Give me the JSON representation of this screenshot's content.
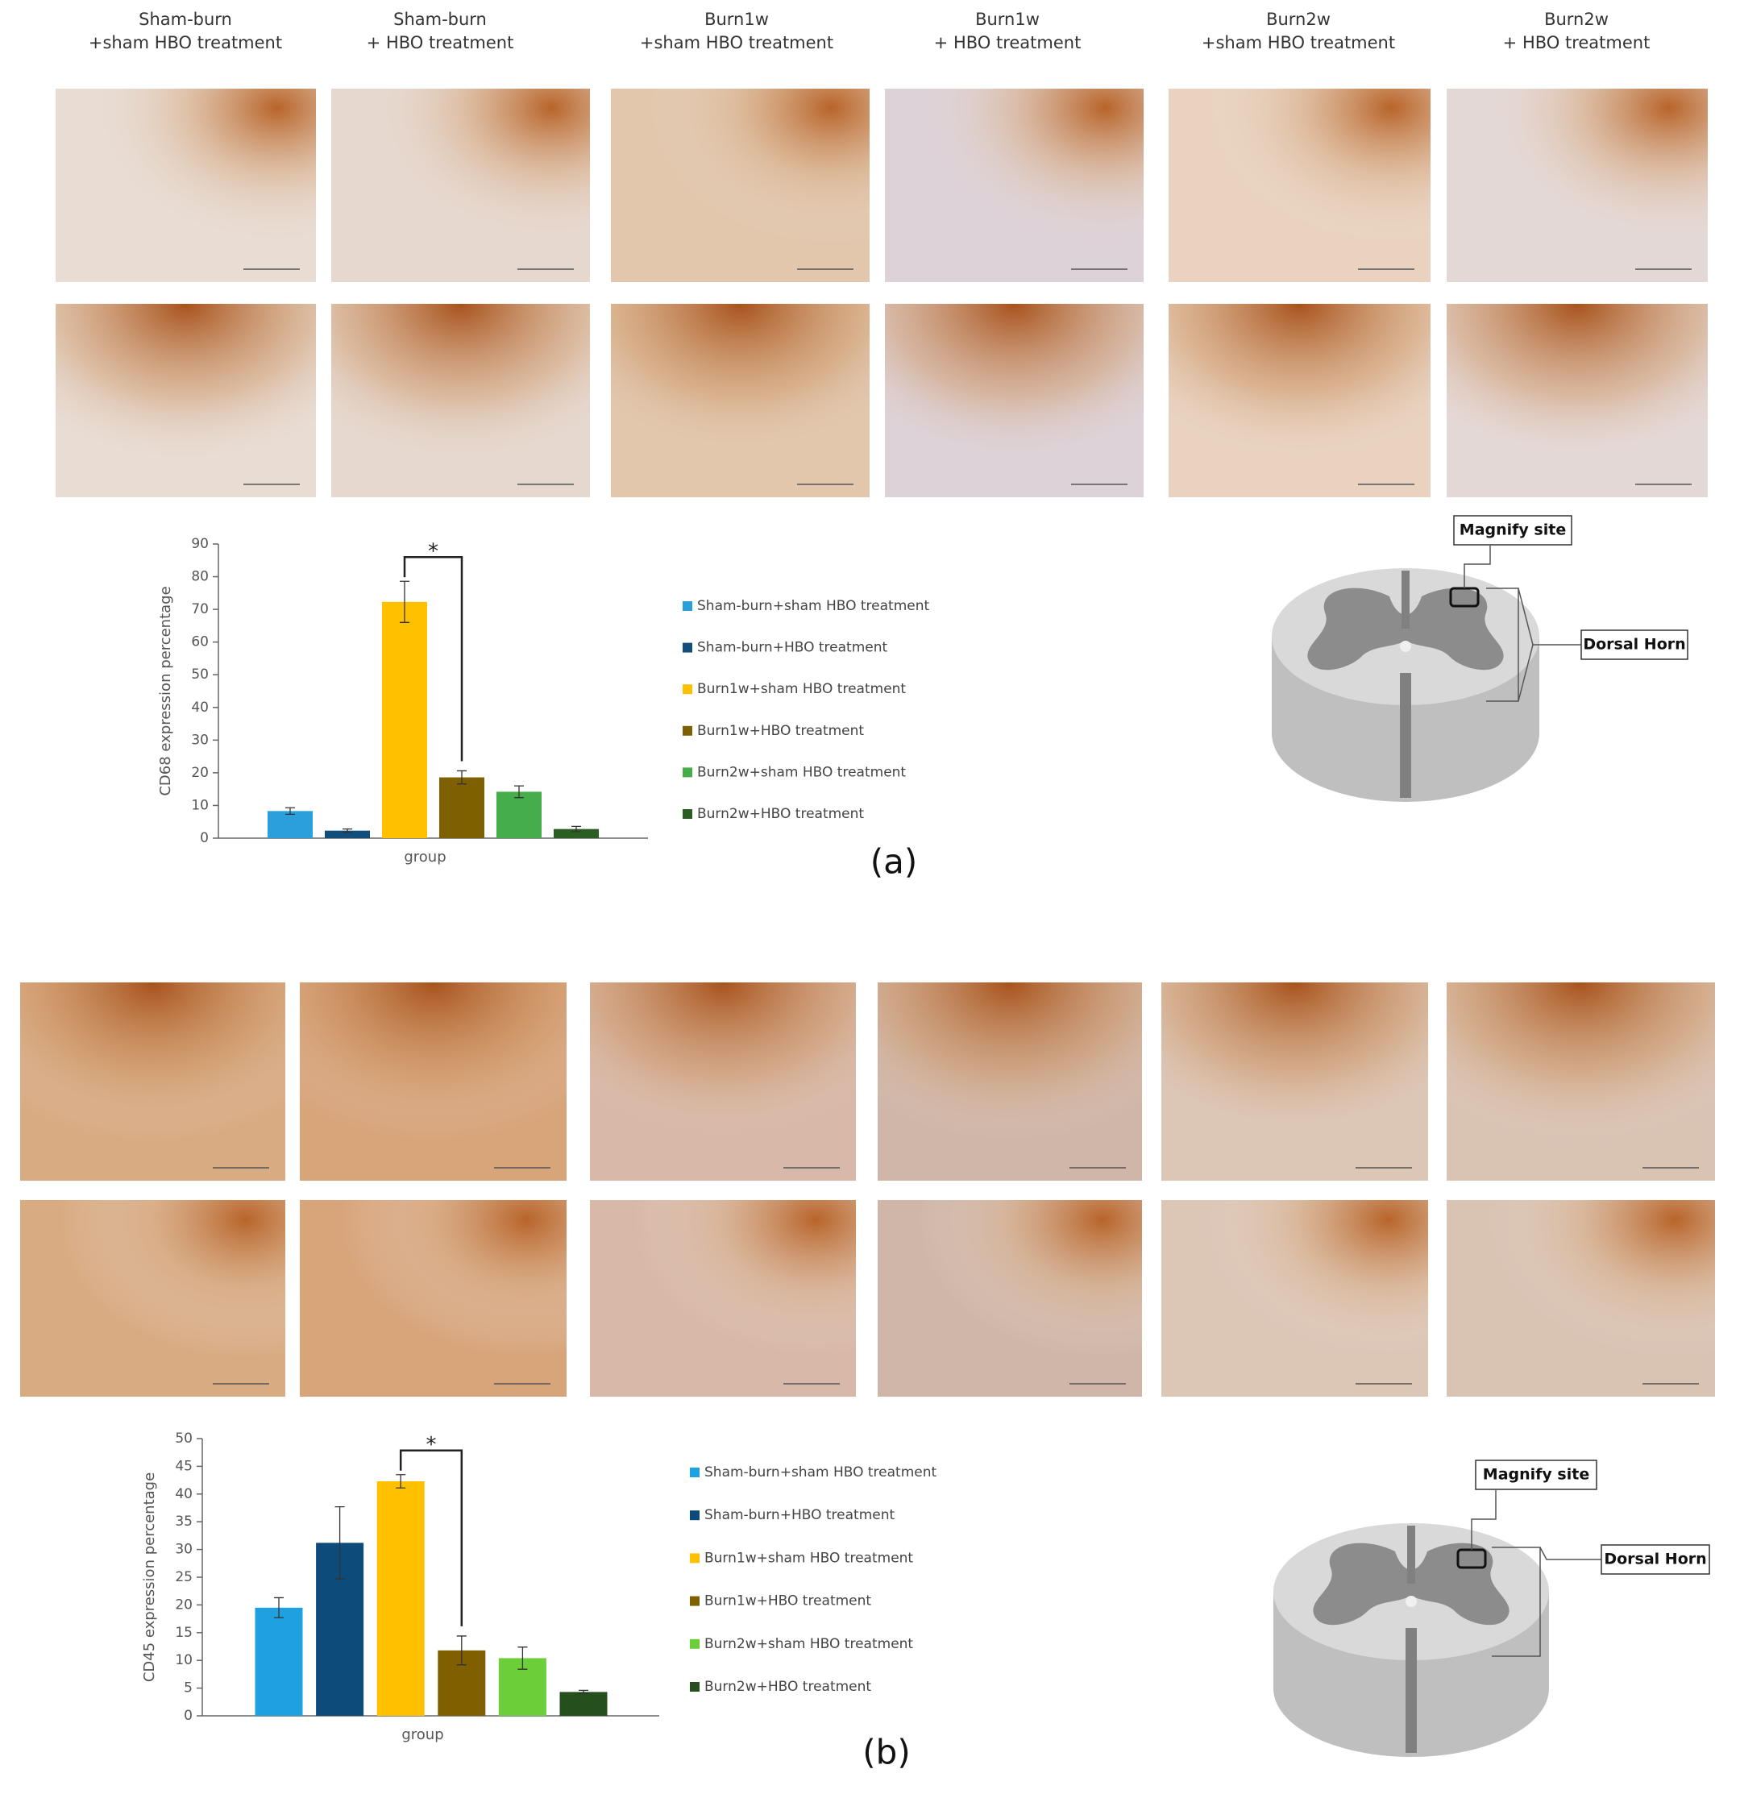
{
  "column_headers": [
    [
      "Sham-burn",
      "+sham HBO treatment"
    ],
    [
      "Sham-burn",
      "+ HBO treatment"
    ],
    [
      "Burn1w",
      "+sham HBO treatment"
    ],
    [
      "Burn1w",
      "+ HBO treatment"
    ],
    [
      "Burn2w",
      "+sham HBO treatment"
    ],
    [
      "Burn2w",
      "+ HBO treatment"
    ]
  ],
  "panel_labels": [
    "(a)",
    "(b)"
  ],
  "diagrams": [
    {
      "magnify": "Magnify site",
      "region": "Dorsal Horn"
    },
    {
      "magnify": "Magnify site",
      "region": "Dorsal Horn"
    }
  ],
  "chart_data": [
    {
      "type": "bar",
      "y_label": "CD68 expression percentage",
      "x_label": "group",
      "annotation": "*",
      "ylim": [
        0,
        90
      ],
      "yticks": [
        0,
        10,
        20,
        30,
        40,
        50,
        60,
        70,
        80,
        90
      ],
      "grid": false,
      "legend": "right",
      "series": [
        {
          "name": "Sham-burn+sham HBO treatment",
          "color": "#2a9fdc",
          "values": [
            8.3
          ],
          "errors": [
            1.0
          ]
        },
        {
          "name": "Sham-burn+HBO treatment",
          "color": "#124e7c",
          "values": [
            2.3
          ],
          "errors": [
            0.5
          ]
        },
        {
          "name": "Burn1w+sham HBO treatment",
          "color": "#ffc000",
          "values": [
            72.3
          ],
          "errors": [
            6.3
          ]
        },
        {
          "name": "Burn1w+HBO treatment",
          "color": "#7f6000",
          "values": [
            18.6
          ],
          "errors": [
            2.0
          ]
        },
        {
          "name": "Burn2w+sham HBO treatment",
          "color": "#45ad4a",
          "values": [
            14.2
          ],
          "errors": [
            1.8
          ]
        },
        {
          "name": "Burn2w+HBO treatment",
          "color": "#2b5e22",
          "values": [
            2.8
          ],
          "errors": [
            0.8
          ]
        }
      ]
    },
    {
      "type": "bar",
      "y_label": "CD45 expression percentage",
      "x_label": "group",
      "annotation": "*",
      "ylim": [
        0,
        50
      ],
      "yticks": [
        0,
        5,
        10,
        15,
        20,
        25,
        30,
        35,
        40,
        45,
        50
      ],
      "grid": false,
      "legend": "right",
      "series": [
        {
          "name": "Sham-burn+sham HBO treatment",
          "color": "#1fa0e0",
          "values": [
            19.5
          ],
          "errors": [
            1.8
          ]
        },
        {
          "name": "Sham-burn+HBO treatment",
          "color": "#0d4c7a",
          "values": [
            31.2
          ],
          "errors": [
            6.5
          ]
        },
        {
          "name": "Burn1w+sham HBO treatment",
          "color": "#ffc000",
          "values": [
            42.3
          ],
          "errors": [
            1.2
          ]
        },
        {
          "name": "Burn1w+HBO treatment",
          "color": "#7f5f00",
          "values": [
            11.8
          ],
          "errors": [
            2.6
          ]
        },
        {
          "name": "Burn2w+sham HBO treatment",
          "color": "#6ccf3a",
          "values": [
            10.4
          ],
          "errors": [
            2.0
          ]
        },
        {
          "name": "Burn2w+HBO treatment",
          "color": "#254f1c",
          "values": [
            4.3
          ],
          "errors": [
            0.3
          ]
        }
      ]
    }
  ]
}
